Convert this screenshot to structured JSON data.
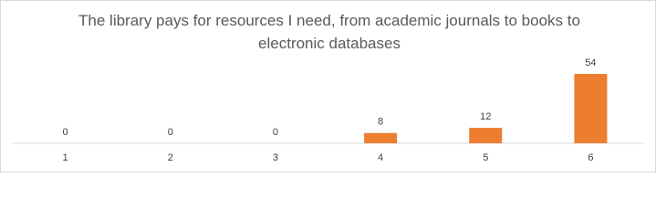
{
  "chart_data": {
    "type": "bar",
    "title": "The library pays for resources I need, from academic journals to books to electronic databases",
    "categories": [
      "1",
      "2",
      "3",
      "4",
      "5",
      "6"
    ],
    "values": [
      0,
      0,
      0,
      8,
      12,
      54
    ],
    "color": "#ed7d31",
    "data_labels": true
  }
}
